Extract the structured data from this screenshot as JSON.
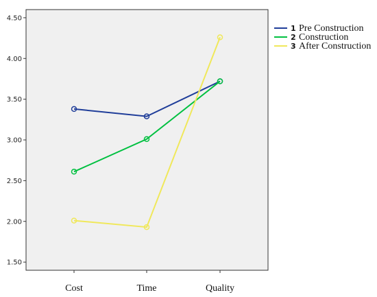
{
  "chart_data": {
    "type": "line",
    "categories": [
      "Cost",
      "Time",
      "Quality"
    ],
    "ylim": [
      1.4,
      4.6
    ],
    "yticks": [
      "1.50",
      "2.00",
      "2.50",
      "3.00",
      "3.50",
      "4.00",
      "4.50"
    ],
    "grid": false,
    "legend_position": "right",
    "series": [
      {
        "number": "1",
        "name": "Pre Construction",
        "color": "#1f3d99",
        "values": [
          3.38,
          3.29,
          3.72
        ]
      },
      {
        "number": "2",
        "name": "Construction",
        "color": "#00c040",
        "values": [
          2.61,
          3.01,
          3.72
        ]
      },
      {
        "number": "3",
        "name": "After Construction",
        "color": "#f0e85a",
        "values": [
          2.01,
          1.93,
          4.26
        ]
      }
    ]
  }
}
